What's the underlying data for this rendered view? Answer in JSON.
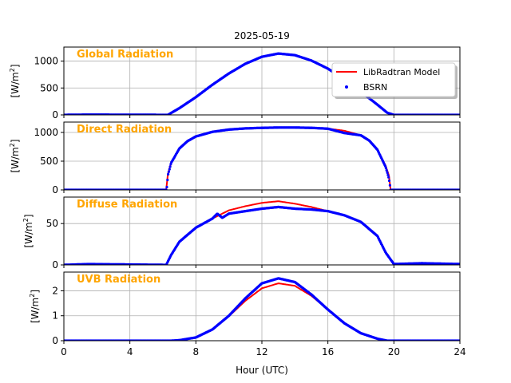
{
  "figure": {
    "title": "2025-05-19",
    "xlabel": "Hour (UTC)",
    "ylabel_prefix": "[W/m",
    "ylabel_sup": "2",
    "ylabel_suffix": "]"
  },
  "colors": {
    "model": "#ff0000",
    "bsrn": "#0000ff",
    "panel_title": "#ffa500",
    "grid": "#b0b0b0",
    "axis": "#000000"
  },
  "legend": {
    "placement": "top-right of first panel",
    "model_label": "LibRadtran Model",
    "bsrn_label": "BSRN"
  },
  "chart_data": [
    {
      "type": "line",
      "title": "Global Radiation",
      "xlabel": "",
      "ylabel": "[W/m2]",
      "xlim": [
        0,
        24
      ],
      "ylim": [
        0,
        1260
      ],
      "yticks": [
        0,
        500,
        1000
      ],
      "xticks": [
        0,
        4,
        8,
        12,
        16,
        20,
        24
      ],
      "grid": true,
      "series": [
        {
          "name": "LibRadtran Model",
          "style": "line",
          "x": [
            0,
            6.3,
            7,
            8,
            9,
            10,
            11,
            12,
            13,
            14,
            15,
            16,
            17,
            18,
            19,
            19.6,
            20,
            24
          ],
          "y": [
            0,
            0,
            125,
            330,
            560,
            770,
            950,
            1080,
            1140,
            1110,
            1010,
            860,
            660,
            430,
            190,
            40,
            0,
            0
          ]
        },
        {
          "name": "BSRN",
          "style": "points",
          "x": [
            0,
            1.5,
            6.3,
            7,
            8,
            9,
            10,
            11,
            12,
            13,
            14,
            15,
            16,
            17,
            18,
            19,
            19.6,
            20,
            24
          ],
          "y": [
            0,
            5,
            0,
            125,
            330,
            560,
            770,
            950,
            1080,
            1140,
            1110,
            1010,
            860,
            660,
            430,
            190,
            40,
            0,
            0
          ]
        }
      ]
    },
    {
      "type": "line",
      "title": "Direct Radiation",
      "xlabel": "",
      "ylabel": "[W/m2]",
      "xlim": [
        0,
        24
      ],
      "ylim": [
        0,
        1180
      ],
      "yticks": [
        0,
        500,
        1000
      ],
      "xticks": [
        0,
        4,
        8,
        12,
        16,
        20,
        24
      ],
      "grid": true,
      "series": [
        {
          "name": "LibRadtran Model",
          "style": "line",
          "x": [
            0,
            6.2,
            6.3,
            6.5,
            7,
            7.5,
            8,
            9,
            10,
            11,
            12,
            13,
            14,
            15,
            16,
            17,
            18,
            18.5,
            19,
            19.5,
            19.7,
            19.8,
            24
          ],
          "y": [
            0,
            0,
            270,
            470,
            720,
            850,
            930,
            1010,
            1050,
            1070,
            1080,
            1085,
            1085,
            1080,
            1065,
            1030,
            950,
            860,
            700,
            420,
            250,
            0,
            0
          ]
        },
        {
          "name": "BSRN",
          "style": "points",
          "x": [
            0,
            6.2,
            6.25,
            6.3,
            6.5,
            7,
            7.5,
            8,
            9,
            10,
            11,
            12,
            13,
            14,
            15,
            16,
            17,
            18,
            18.5,
            19,
            19.5,
            19.7,
            19.8,
            24
          ],
          "y": [
            0,
            0,
            60,
            250,
            470,
            720,
            850,
            930,
            1010,
            1050,
            1070,
            1080,
            1085,
            1085,
            1080,
            1065,
            990,
            950,
            860,
            700,
            400,
            200,
            0,
            0
          ]
        }
      ]
    },
    {
      "type": "line",
      "title": "Diffuse Radiation",
      "xlabel": "",
      "ylabel": "[W/m2]",
      "xlim": [
        0,
        24
      ],
      "ylim": [
        0,
        82
      ],
      "yticks": [
        0,
        50
      ],
      "xticks": [
        0,
        4,
        8,
        12,
        16,
        20,
        24
      ],
      "grid": true,
      "series": [
        {
          "name": "LibRadtran Model",
          "style": "line",
          "x": [
            0,
            6.2,
            6.5,
            7,
            8,
            9,
            10,
            11,
            12,
            13,
            14,
            15,
            16,
            17,
            18,
            19,
            19.5,
            20,
            24
          ],
          "y": [
            0,
            0,
            12,
            28,
            45,
            56,
            66,
            71,
            75,
            77,
            74,
            70,
            65,
            60,
            52,
            35,
            15,
            0,
            0
          ]
        },
        {
          "name": "BSRN",
          "style": "points",
          "x": [
            0,
            1.5,
            6.2,
            6.5,
            7,
            8,
            9,
            9.3,
            9.6,
            10,
            11,
            12,
            13,
            14,
            15,
            16,
            17,
            18,
            19,
            19.5,
            20,
            21.7,
            24
          ],
          "y": [
            0,
            1,
            0,
            12,
            28,
            45,
            56,
            62,
            57,
            62,
            65,
            68,
            70,
            68,
            67,
            65,
            60,
            52,
            35,
            15,
            1,
            2,
            1
          ]
        }
      ]
    },
    {
      "type": "line",
      "title": "UVB Radiation",
      "xlabel": "Hour (UTC)",
      "ylabel": "[W/m2]",
      "xlim": [
        0,
        24
      ],
      "ylim": [
        0,
        2.75
      ],
      "yticks": [
        0,
        1,
        2
      ],
      "xticks": [
        0,
        4,
        8,
        12,
        16,
        20,
        24
      ],
      "grid": true,
      "series": [
        {
          "name": "LibRadtran Model",
          "style": "line",
          "x": [
            0,
            6.5,
            7,
            8,
            9,
            10,
            11,
            12,
            13,
            14,
            15,
            16,
            17,
            18,
            19,
            19.6,
            24
          ],
          "y": [
            0,
            0,
            0.02,
            0.13,
            0.45,
            0.98,
            1.6,
            2.1,
            2.3,
            2.2,
            1.8,
            1.25,
            0.7,
            0.3,
            0.08,
            0,
            0
          ]
        },
        {
          "name": "BSRN",
          "style": "points",
          "x": [
            0,
            6.5,
            7,
            8,
            9,
            10,
            11,
            12,
            13,
            14,
            15,
            16,
            17,
            18,
            19,
            19.6,
            24
          ],
          "y": [
            0,
            0,
            0.02,
            0.13,
            0.45,
            1.0,
            1.7,
            2.3,
            2.5,
            2.35,
            1.85,
            1.25,
            0.7,
            0.3,
            0.08,
            0,
            0
          ]
        }
      ]
    }
  ]
}
